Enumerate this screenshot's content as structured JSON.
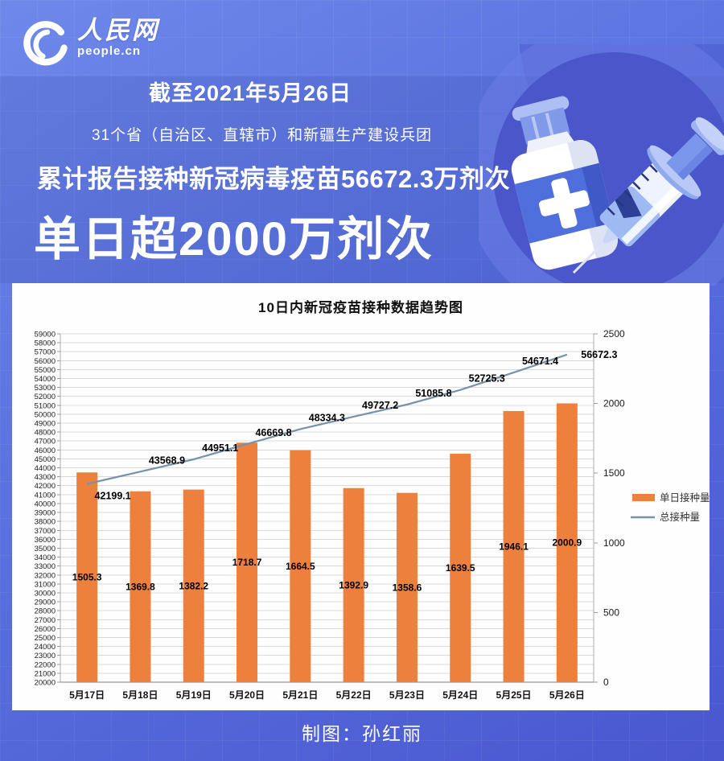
{
  "brand": {
    "logo_text": "人民网",
    "logo_sub": "people.cn"
  },
  "header": {
    "date_line": "截至2021年5月26日",
    "scope_line": "31个省（自治区、直辖市）和新疆生产建设兵团",
    "cumulative_line": "累计报告接种新冠病毒疫苗56672.3万剂次",
    "headline": "单日超2000万剂次"
  },
  "chart_data": {
    "type": "bar",
    "title": "10日内新冠疫苗接种数据趋势图",
    "categories": [
      "5月17日",
      "5月18日",
      "5月19日",
      "5月20日",
      "5月21日",
      "5月22日",
      "5月23日",
      "5月24日",
      "5月25日",
      "5月26日"
    ],
    "series": [
      {
        "name": "单日接种量",
        "type": "bar",
        "axis": "right",
        "color": "#EC803C",
        "values": [
          1505.3,
          1369.8,
          1382.2,
          1718.7,
          1664.5,
          1392.9,
          1358.6,
          1639.5,
          1946.1,
          2000.9
        ]
      },
      {
        "name": "总接种量",
        "type": "line",
        "axis": "left",
        "color": "#7792A9",
        "values": [
          42199.1,
          43568.9,
          44951.1,
          46669.8,
          48334.3,
          49727.2,
          51085.8,
          52725.3,
          54671.4,
          56672.3
        ]
      }
    ],
    "left_axis": {
      "min": 20000,
      "max": 59000,
      "step": 1000
    },
    "right_axis": {
      "min": 0,
      "max": 2500,
      "step": 500
    },
    "grid": true,
    "legend_position": "right"
  },
  "footer": {
    "credit": "制图：孙红丽"
  },
  "colors": {
    "bar": "#EC803C",
    "line": "#7792A9",
    "background_top": "#6E88EA",
    "background_bottom": "#4A57CF",
    "panel": "#FEFEFE",
    "gridline": "#D9D9D9"
  }
}
